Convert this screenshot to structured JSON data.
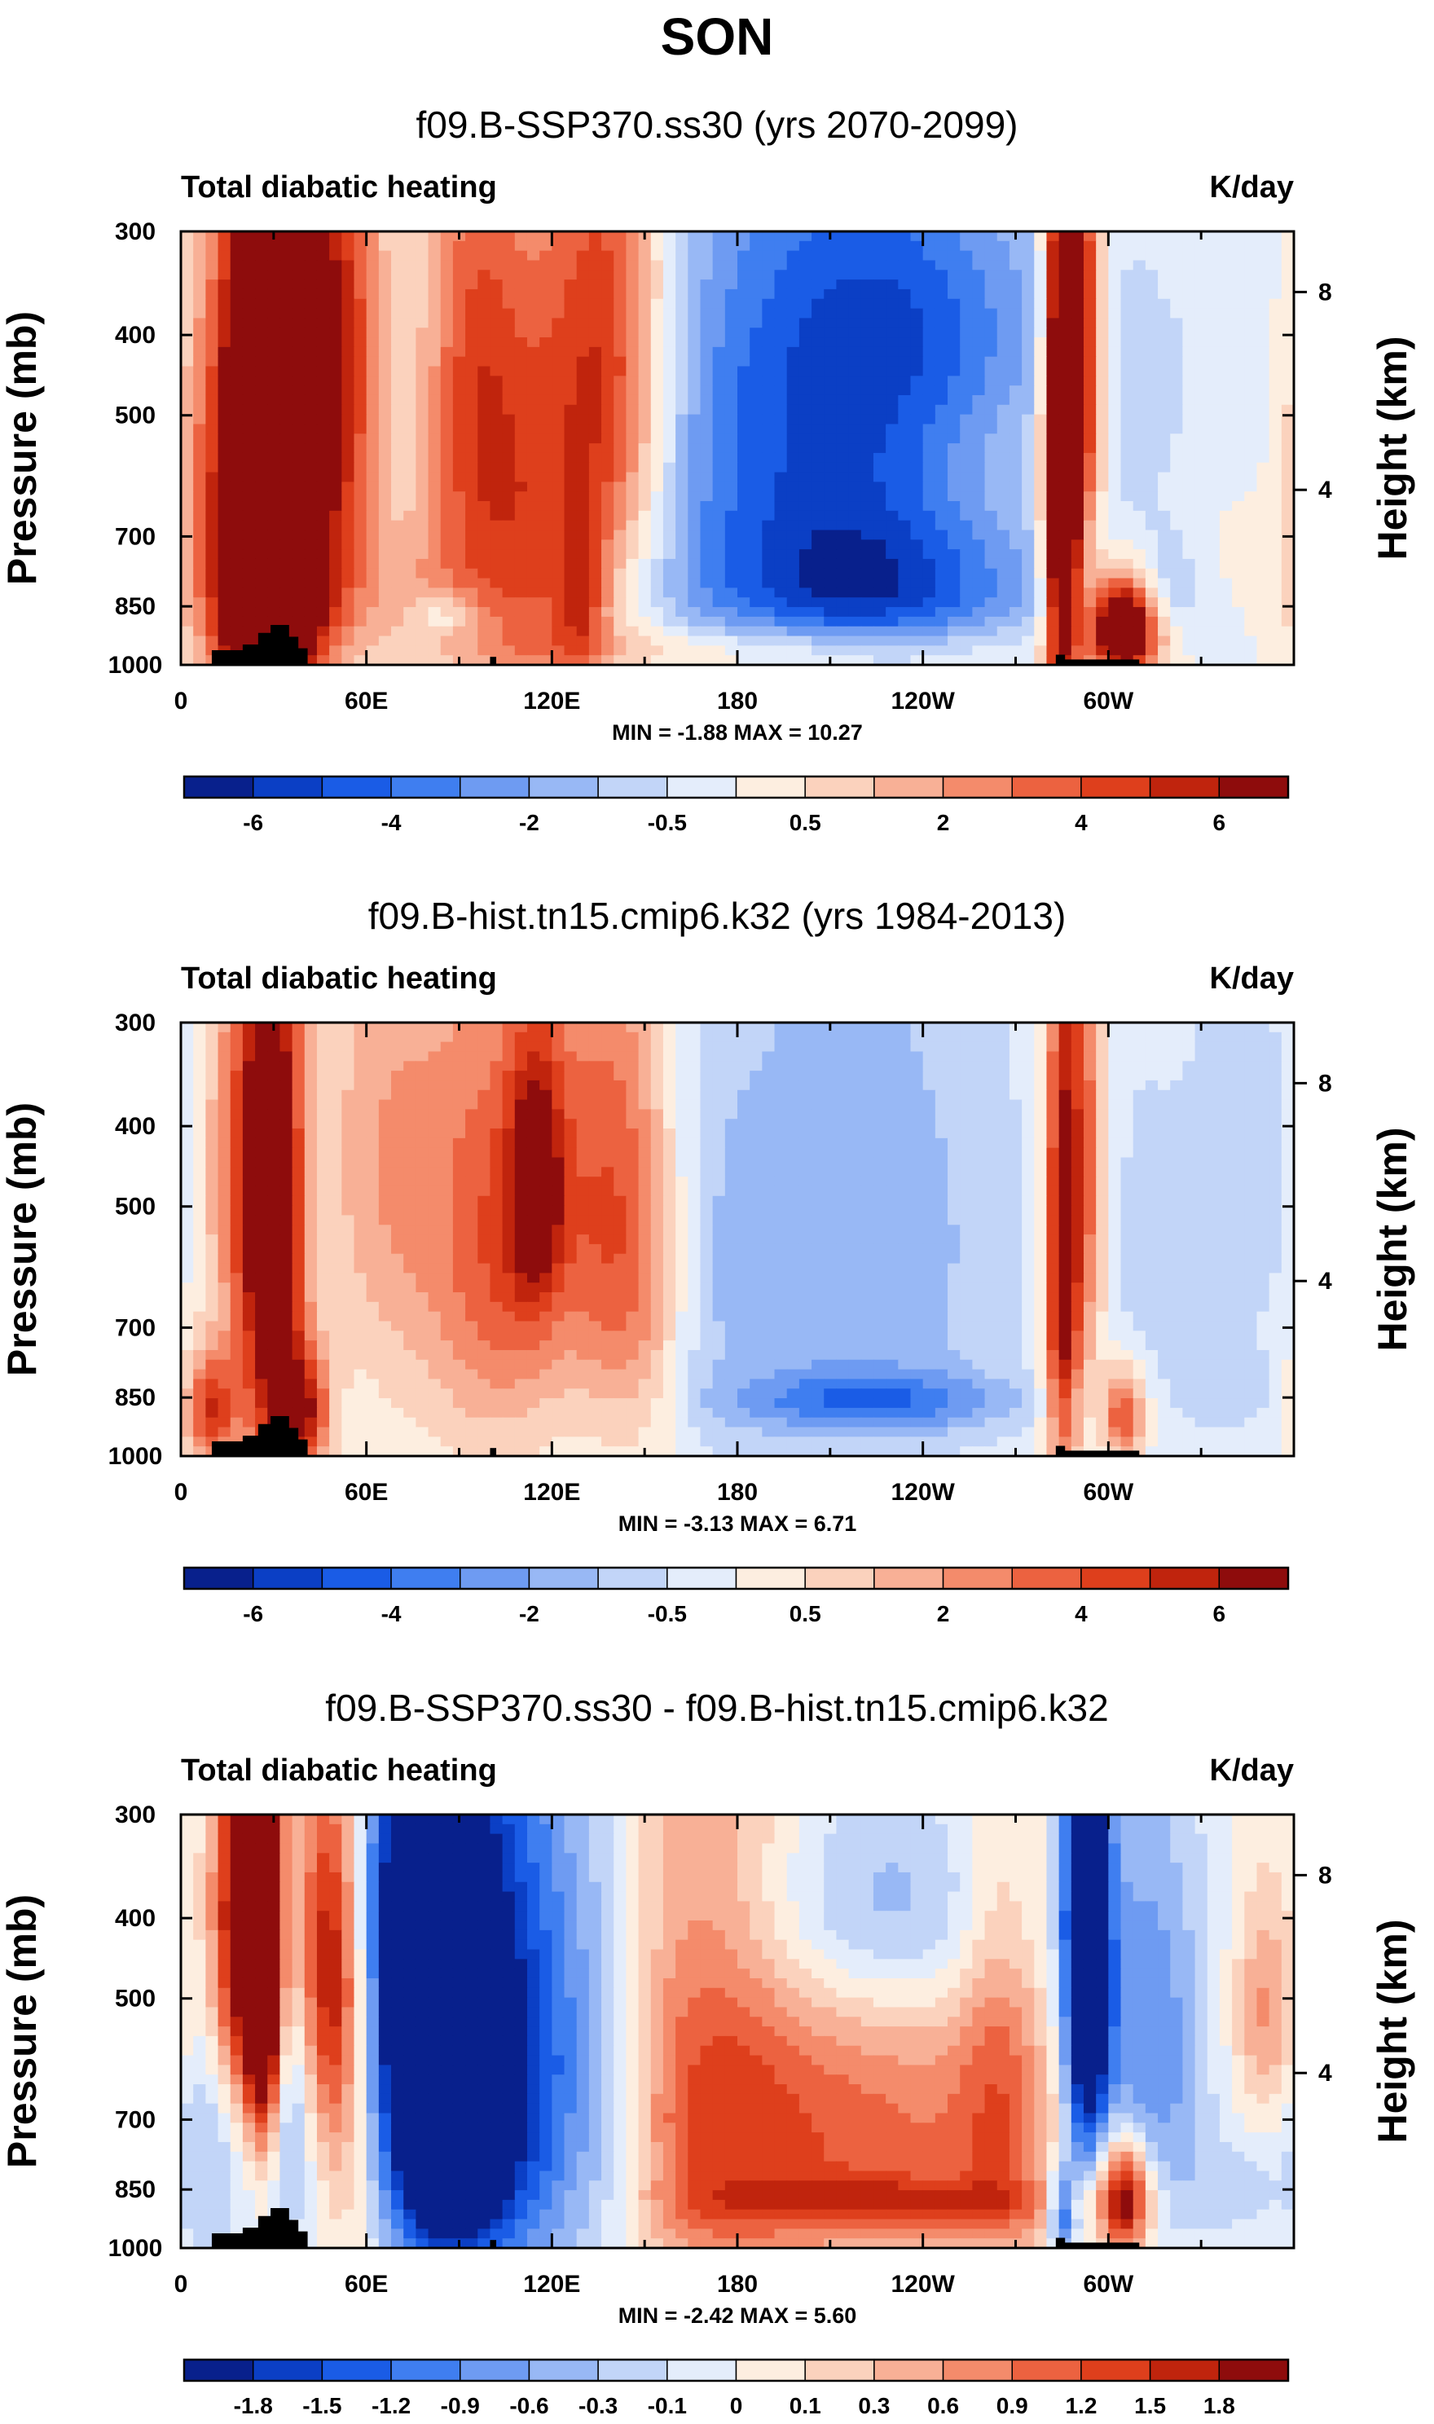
{
  "title": "SON",
  "chart_data": [
    {
      "type": "heatmap",
      "title": "f09.B-SSP370.ss30 (yrs 2070-2099)",
      "left_label": "Total diabatic heating",
      "right_label": "K/day",
      "ylabel": "Pressure (mb)",
      "ylabel_right": "Height (km)",
      "y_ticks": [
        "300",
        "400",
        "500",
        "700",
        "850",
        "1000"
      ],
      "y_tick_values": [
        300,
        400,
        500,
        700,
        850,
        1000
      ],
      "ylim": [
        1000,
        300
      ],
      "x_ticks": [
        "0",
        "60E",
        "120E",
        "180",
        "120W",
        "60W"
      ],
      "x_tick_values": [
        0,
        60,
        120,
        180,
        240,
        300
      ],
      "xlim": [
        0,
        360
      ],
      "height_ticks": [
        "8",
        "4"
      ],
      "height_tick_pressures": [
        355,
        615
      ],
      "min_max": "MIN =  -1.88  MAX =  10.27",
      "colorbar_labels": [
        "-6",
        "-4",
        "-2",
        "-0.5",
        "0.5",
        "2",
        "4",
        "6"
      ],
      "colorbar_colors": [
        "#08208c",
        "#0b3fc5",
        "#1a5ce6",
        "#3f7ef0",
        "#6e9bf2",
        "#98b8f5",
        "#c2d5f8",
        "#e4edfb",
        "#fdeee0",
        "#fbd2bd",
        "#f8b096",
        "#f48b6b",
        "#ec6240",
        "#de3f1c",
        "#c0240d",
        "#8e0c0c"
      ],
      "features": [
        {
          "lon": 25,
          "p": 550,
          "wx": 7,
          "wp": 380,
          "v": 12
        },
        {
          "lon": 30,
          "p": 880,
          "wx": 10,
          "wp": 120,
          "v": 8
        },
        {
          "lon": 42,
          "p": 500,
          "wx": 10,
          "wp": 300,
          "v": 6
        },
        {
          "lon": 10,
          "p": 620,
          "wx": 8,
          "wp": 280,
          "v": 4
        },
        {
          "lon": 55,
          "p": 420,
          "wx": 9,
          "wp": 200,
          "v": 3
        },
        {
          "lon": 95,
          "p": 480,
          "wx": 12,
          "wp": 250,
          "v": 4.5
        },
        {
          "lon": 115,
          "p": 700,
          "wx": 12,
          "wp": 300,
          "v": 3
        },
        {
          "lon": 138,
          "p": 450,
          "wx": 14,
          "wp": 250,
          "v": 5.5
        },
        {
          "lon": 130,
          "p": 850,
          "wx": 6,
          "wp": 130,
          "v": 3
        },
        {
          "lon": 70,
          "p": 820,
          "wx": 30,
          "wp": 120,
          "v": 2
        },
        {
          "lon": 85,
          "p": 870,
          "wx": 8,
          "wp": 40,
          "v": -2
        },
        {
          "lon": 165,
          "p": 600,
          "wx": 20,
          "wp": 300,
          "v": -1
        },
        {
          "lon": 210,
          "p": 500,
          "wx": 35,
          "wp": 260,
          "v": -5
        },
        {
          "lon": 225,
          "p": 820,
          "wx": 40,
          "wp": 120,
          "v": -4
        },
        {
          "lon": 250,
          "p": 380,
          "wx": 30,
          "wp": 100,
          "v": -2
        },
        {
          "lon": 190,
          "p": 960,
          "wx": 60,
          "wp": 50,
          "v": 2
        },
        {
          "lon": 285,
          "p": 600,
          "wx": 4,
          "wp": 320,
          "v": 12
        },
        {
          "lon": 292,
          "p": 420,
          "wx": 5,
          "wp": 200,
          "v": 6
        },
        {
          "lon": 305,
          "p": 900,
          "wx": 8,
          "wp": 90,
          "v": 10
        },
        {
          "lon": 320,
          "p": 550,
          "wx": 30,
          "wp": 250,
          "v": -0.9
        },
        {
          "lon": 340,
          "p": 700,
          "wx": 14,
          "wp": 120,
          "v": 0.8
        },
        {
          "lon": 318,
          "p": 820,
          "wx": 8,
          "wp": 80,
          "v": -1.5
        }
      ]
    },
    {
      "type": "heatmap",
      "title": "f09.B-hist.tn15.cmip6.k32 (yrs 1984-2013)",
      "left_label": "Total diabatic heating",
      "right_label": "K/day",
      "ylabel": "Pressure (mb)",
      "ylabel_right": "Height (km)",
      "y_ticks": [
        "300",
        "400",
        "500",
        "700",
        "850",
        "1000"
      ],
      "y_tick_values": [
        300,
        400,
        500,
        700,
        850,
        1000
      ],
      "ylim": [
        1000,
        300
      ],
      "x_ticks": [
        "0",
        "60E",
        "120E",
        "180",
        "120W",
        "60W"
      ],
      "x_tick_values": [
        0,
        60,
        120,
        180,
        240,
        300
      ],
      "xlim": [
        0,
        360
      ],
      "height_ticks": [
        "8",
        "4"
      ],
      "height_tick_pressures": [
        355,
        615
      ],
      "min_max": "MIN =  -3.13  MAX =  6.71",
      "colorbar_labels": [
        "-6",
        "-4",
        "-2",
        "-0.5",
        "0.5",
        "2",
        "4",
        "6"
      ],
      "colorbar_colors": [
        "#08208c",
        "#0b3fc5",
        "#1a5ce6",
        "#3f7ef0",
        "#6e9bf2",
        "#98b8f5",
        "#c2d5f8",
        "#e4edfb",
        "#fdeee0",
        "#fbd2bd",
        "#f8b096",
        "#f48b6b",
        "#ec6240",
        "#de3f1c",
        "#c0240d",
        "#8e0c0c"
      ],
      "features": [
        {
          "lon": 30,
          "p": 580,
          "wx": 7,
          "wp": 380,
          "v": 7
        },
        {
          "lon": 10,
          "p": 880,
          "wx": 6,
          "wp": 100,
          "v": 5
        },
        {
          "lon": 40,
          "p": 880,
          "wx": 6,
          "wp": 100,
          "v": 5
        },
        {
          "lon": 20,
          "p": 450,
          "wx": 9,
          "wp": 200,
          "v": 3.5
        },
        {
          "lon": 70,
          "p": 420,
          "wx": 18,
          "wp": 200,
          "v": 2.5
        },
        {
          "lon": 105,
          "p": 520,
          "wx": 14,
          "wp": 250,
          "v": 3.5
        },
        {
          "lon": 115,
          "p": 470,
          "wx": 6,
          "wp": 120,
          "v": 5
        },
        {
          "lon": 135,
          "p": 480,
          "wx": 12,
          "wp": 250,
          "v": 3.5
        },
        {
          "lon": 150,
          "p": 600,
          "wx": 10,
          "wp": 250,
          "v": 2.5
        },
        {
          "lon": 90,
          "p": 750,
          "wx": 25,
          "wp": 200,
          "v": 1
        },
        {
          "lon": 170,
          "p": 650,
          "wx": 12,
          "wp": 300,
          "v": -0.5
        },
        {
          "lon": 215,
          "p": 560,
          "wx": 40,
          "wp": 350,
          "v": -2.5
        },
        {
          "lon": 225,
          "p": 860,
          "wx": 32,
          "wp": 50,
          "v": -3
        },
        {
          "lon": 285,
          "p": 600,
          "wx": 4,
          "wp": 320,
          "v": 7
        },
        {
          "lon": 293,
          "p": 450,
          "wx": 5,
          "wp": 250,
          "v": 4
        },
        {
          "lon": 305,
          "p": 890,
          "wx": 5,
          "wp": 80,
          "v": 5
        },
        {
          "lon": 312,
          "p": 600,
          "wx": 15,
          "wp": 300,
          "v": -1
        },
        {
          "lon": 345,
          "p": 450,
          "wx": 12,
          "wp": 200,
          "v": -1.5
        },
        {
          "lon": 340,
          "p": 840,
          "wx": 10,
          "wp": 80,
          "v": -1.2
        }
      ]
    },
    {
      "type": "heatmap",
      "title": "f09.B-SSP370.ss30 - f09.B-hist.tn15.cmip6.k32",
      "left_label": "Total diabatic heating",
      "right_label": "K/day",
      "ylabel": "Pressure (mb)",
      "ylabel_right": "Height (km)",
      "y_ticks": [
        "300",
        "400",
        "500",
        "700",
        "850",
        "1000"
      ],
      "y_tick_values": [
        300,
        400,
        500,
        700,
        850,
        1000
      ],
      "ylim": [
        1000,
        300
      ],
      "x_ticks": [
        "0",
        "60E",
        "120E",
        "180",
        "120W",
        "60W"
      ],
      "x_tick_values": [
        0,
        60,
        120,
        180,
        240,
        300
      ],
      "xlim": [
        0,
        360
      ],
      "height_ticks": [
        "8",
        "4"
      ],
      "height_tick_pressures": [
        355,
        615
      ],
      "min_max": "MIN =  -2.42  MAX =  5.60",
      "colorbar_labels": [
        "-1.8",
        "-1.5",
        "-1.2",
        "-0.9",
        "-0.6",
        "-0.3",
        "-0.1",
        "0",
        "0.1",
        "0.3",
        "0.6",
        "0.9",
        "1.2",
        "1.5",
        "1.8"
      ],
      "colorbar_colors": [
        "#08208c",
        "#0b3fc5",
        "#1a5ce6",
        "#3f7ef0",
        "#6e9bf2",
        "#98b8f5",
        "#c2d5f8",
        "#e4edfb",
        "#fdeee0",
        "#fbd2bd",
        "#f8b096",
        "#f48b6b",
        "#ec6240",
        "#de3f1c",
        "#c0240d",
        "#8e0c0c"
      ],
      "features": [
        {
          "lon": 20,
          "p": 420,
          "wx": 8,
          "wp": 180,
          "v": 2.5
        },
        {
          "lon": 27,
          "p": 470,
          "wx": 4,
          "wp": 200,
          "v": 2.4
        },
        {
          "lon": 48,
          "p": 450,
          "wx": 8,
          "wp": 180,
          "v": 1.8
        },
        {
          "lon": 55,
          "p": 700,
          "wx": 8,
          "wp": 250,
          "v": 0.8
        },
        {
          "lon": 10,
          "p": 650,
          "wx": 10,
          "wp": 250,
          "v": -0.7
        },
        {
          "lon": 35,
          "p": 650,
          "wx": 6,
          "wp": 200,
          "v": -0.8
        },
        {
          "lon": 78,
          "p": 450,
          "wx": 15,
          "wp": 280,
          "v": -2.3
        },
        {
          "lon": 90,
          "p": 650,
          "wx": 20,
          "wp": 300,
          "v": -1.4
        },
        {
          "lon": 88,
          "p": 850,
          "wx": 10,
          "wp": 100,
          "v": -1.2
        },
        {
          "lon": 115,
          "p": 600,
          "wx": 18,
          "wp": 350,
          "v": -1.0
        },
        {
          "lon": 140,
          "p": 700,
          "wx": 10,
          "wp": 300,
          "v": -0.4
        },
        {
          "lon": 170,
          "p": 560,
          "wx": 22,
          "wp": 400,
          "v": 0.9
        },
        {
          "lon": 220,
          "p": 760,
          "wx": 45,
          "wp": 220,
          "v": 1.1
        },
        {
          "lon": 230,
          "p": 880,
          "wx": 40,
          "wp": 40,
          "v": 0.8
        },
        {
          "lon": 225,
          "p": 390,
          "wx": 35,
          "wp": 90,
          "v": -0.8
        },
        {
          "lon": 265,
          "p": 600,
          "wx": 10,
          "wp": 300,
          "v": 0.7
        },
        {
          "lon": 293,
          "p": 450,
          "wx": 5,
          "wp": 220,
          "v": -3
        },
        {
          "lon": 305,
          "p": 870,
          "wx": 6,
          "wp": 100,
          "v": 2.2
        },
        {
          "lon": 312,
          "p": 600,
          "wx": 14,
          "wp": 250,
          "v": -1.1
        },
        {
          "lon": 352,
          "p": 520,
          "wx": 8,
          "wp": 120,
          "v": 0.9
        },
        {
          "lon": 340,
          "p": 850,
          "wx": 10,
          "wp": 80,
          "v": -0.4
        },
        {
          "lon": 285,
          "p": 900,
          "wx": 3,
          "wp": 80,
          "v": -1.5
        }
      ]
    }
  ]
}
